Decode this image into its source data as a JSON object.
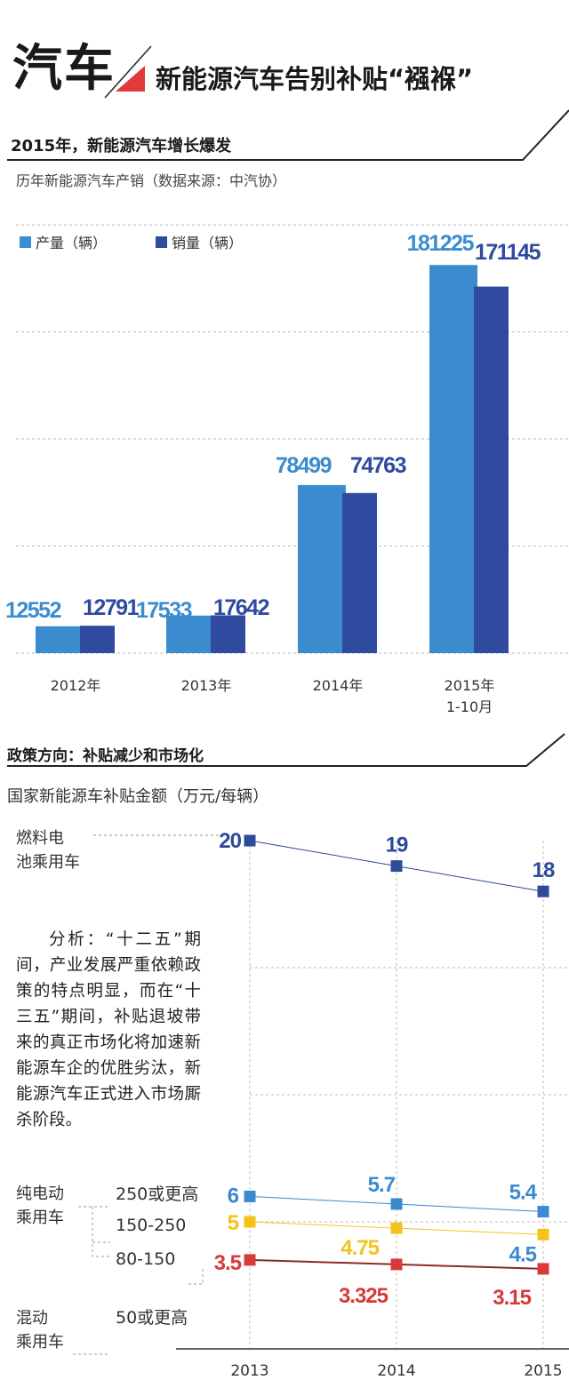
{
  "header": {
    "brand": "汽车",
    "title": "新能源汽车告别补贴“襁褓”",
    "accent_color": "#e03a3a"
  },
  "section1": {
    "title": "2015年，新能源汽车增长爆发",
    "subtitle": "历年新能源汽车产销（数据来源：中汽协）"
  },
  "section2": {
    "title": "政策方向：补贴减少和市场化",
    "subtitle": "国家新能源车补贴金额（万元/每辆）",
    "analysis": "分析：“十二五”期间，产业发展严重依赖政策的特点明显，而在“十三五”期间，补贴退坡带来的真正市场化将加速新能源车企的优胜劣汰，新能源汽车正式进入市场厮杀阶段。",
    "labels": {
      "fuel_cell_1": "燃料电",
      "fuel_cell_2": "池乘用车",
      "ev_1": "纯电动",
      "ev_2": "乘用车",
      "ev_250": "250或更高",
      "ev_150_250": "150-250",
      "ev_80_150": "80-150",
      "hybrid_1": "混动",
      "hybrid_2": "乘用车",
      "hybrid_50": "50或更高"
    }
  },
  "chart_data": [
    {
      "type": "bar",
      "categories": [
        "2012年",
        "2013年",
        "2014年",
        "2015年\n1-10月"
      ],
      "series": [
        {
          "name": "产量（辆）",
          "color": "#3b8ccf",
          "values": [
            12552,
            17533,
            78499,
            181225
          ]
        },
        {
          "name": "销量（辆）",
          "color": "#2f4a9e",
          "values": [
            12791,
            17642,
            74763,
            171145
          ]
        }
      ],
      "ylim": [
        0,
        200000
      ],
      "grid": true,
      "legend": "top-left"
    },
    {
      "type": "line",
      "x": [
        "2013",
        "2014",
        "2015"
      ],
      "series": [
        {
          "color": "#2e4a9a",
          "values": [
            20,
            19,
            18
          ],
          "label_colors": [
            "#2e4a9a",
            "#2e4a9a",
            "#2e4a9a"
          ],
          "labels": [
            "20",
            "19",
            "18"
          ]
        },
        {
          "color": "#3b8ad0",
          "values": [
            6,
            5.7,
            5.4
          ],
          "label_colors": [
            "#3b8ad0",
            "#3b8ad0",
            "#3b8ad0"
          ],
          "labels": [
            "6",
            "5.7",
            "5.4"
          ]
        },
        {
          "color": "#f5c21b",
          "values": [
            5,
            4.75,
            4.5
          ],
          "label_colors": [
            "#f5c21b",
            "#f5c21b",
            "#3b8ad0"
          ],
          "labels": [
            "5",
            "4.75",
            "4.5"
          ]
        },
        {
          "color": "#d83a3a",
          "line_color": "#8a2a2a",
          "values": [
            3.5,
            3.325,
            3.15
          ],
          "label_colors": [
            "#d83a3a",
            "#d83a3a",
            "#d83a3a"
          ],
          "labels": [
            "3.5",
            "3.325",
            "3.15"
          ]
        }
      ],
      "ylim": [
        0,
        20
      ],
      "grid": true
    }
  ]
}
